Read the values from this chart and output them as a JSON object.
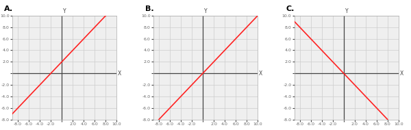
{
  "graphs": [
    {
      "label": "A.",
      "line": {
        "slope": 1,
        "intercept": 2
      },
      "x_range": [
        -9,
        10
      ],
      "y_range": [
        -8,
        10
      ],
      "line_color": "#ff2222",
      "line_width": 1.2
    },
    {
      "label": "B.",
      "line": {
        "slope": 1,
        "intercept": 0
      },
      "x_range": [
        -9,
        10
      ],
      "y_range": [
        -8,
        10
      ],
      "line_color": "#ff2222",
      "line_width": 1.2
    },
    {
      "label": "C.",
      "line": {
        "slope": -1,
        "intercept": 0
      },
      "x_range": [
        -9,
        10
      ],
      "y_range": [
        -8,
        10
      ],
      "line_color": "#ff2222",
      "line_width": 1.2
    }
  ],
  "axis_color": "#444444",
  "grid_color": "#cccccc",
  "grid_linewidth": 0.5,
  "tick_step": 2,
  "tick_fontsize": 4.5,
  "tick_color": "#666666",
  "label_fontsize": 5.5,
  "letter_fontsize": 8,
  "background_color": "#efefef",
  "border_color": "#aaaaaa",
  "fig_width": 6.0,
  "fig_height": 1.9,
  "dpi": 100
}
